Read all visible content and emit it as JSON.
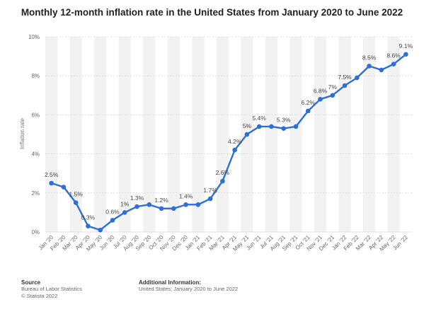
{
  "title": "Monthly 12-month inflation rate in the United States from January 2020 to June 2022",
  "footer": {
    "source_heading": "Source",
    "source_lines": [
      "Bureau of Labor Statistics",
      "© Statista 2022"
    ],
    "info_heading": "Additional Information:",
    "info_lines": [
      "United States; January 2020 to June 2022"
    ]
  },
  "chart_data": {
    "type": "line",
    "ylabel": "Inflation rate",
    "xlabel": "",
    "ylim": [
      0,
      10
    ],
    "y_ticks": [
      "0%",
      "2%",
      "4%",
      "6%",
      "8%",
      "10%"
    ],
    "y_tick_values": [
      0,
      2,
      4,
      6,
      8,
      10
    ],
    "grid": "horizontal",
    "line_color": "#2f6fd4",
    "categories": [
      "Jan '20",
      "Feb '20",
      "Mar '20",
      "Apr '20",
      "May '20",
      "Jun '20",
      "Jul '20",
      "Aug '20",
      "Sep '20",
      "Oct '20",
      "Nov '20",
      "Dec '20",
      "Jan '21",
      "Feb '21",
      "Mar '21",
      "Apr '21",
      "May '21",
      "Jun '21",
      "Jul '21",
      "Aug '21",
      "Sep '21",
      "Oct '21",
      "Nov '21",
      "Dec '21",
      "Jan '22",
      "Feb '22",
      "Mar '22",
      "Apr '22",
      "May '22",
      "Jun '22"
    ],
    "values": [
      2.5,
      2.3,
      1.5,
      0.3,
      0.1,
      0.6,
      1.0,
      1.3,
      1.4,
      1.2,
      1.2,
      1.4,
      1.4,
      1.7,
      2.6,
      4.2,
      5.0,
      5.4,
      5.4,
      5.3,
      5.4,
      6.2,
      6.8,
      7.0,
      7.5,
      7.9,
      8.5,
      8.3,
      8.6,
      9.1
    ],
    "data_labels": [
      "2.5%",
      "",
      "1.5%",
      "0.3%",
      "",
      "0.6%",
      "1%",
      "1.3%",
      "",
      "1.2%",
      "",
      "1.4%",
      "",
      "1.7%",
      "2.6%",
      "4.2%",
      "5%",
      "5.4%",
      "",
      "5.3%",
      "",
      "6.2%",
      "6.8%",
      "7%",
      "7.5%",
      "",
      "8.5%",
      "",
      "8.6%",
      "9.1%"
    ]
  }
}
